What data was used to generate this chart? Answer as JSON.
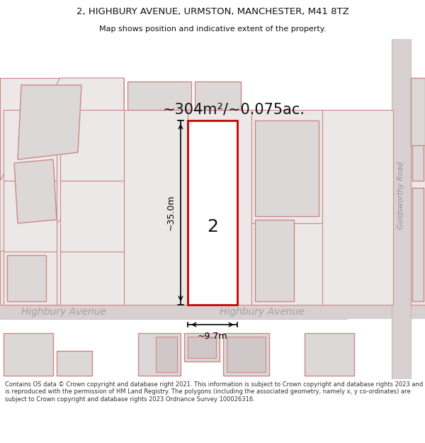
{
  "title_line1": "2, HIGHBURY AVENUE, URMSTON, MANCHESTER, M41 8TZ",
  "title_line2": "Map shows position and indicative extent of the property.",
  "area_text": "~304m²/~0.075ac.",
  "label_number": "2",
  "dim_height": "~35.0m",
  "dim_width": "~9.7m",
  "road_label_left": "Highbury Avenue",
  "road_label_right": "Highbury Avenue",
  "road_label_vert": "Goldsworthy Road",
  "footer": "Contains OS data © Crown copyright and database right 2021. This information is subject to Crown copyright and database rights 2023 and is reproduced with the permission of HM Land Registry. The polygons (including the associated geometry, namely x, y co-ordinates) are subject to Crown copyright and database rights 2023 Ordnance Survey 100026316.",
  "map_bg": "#f5f0f0",
  "plot_edge_color": "#cc0000",
  "building_fill": "#ddd8d8",
  "building_edge": "#cc8888",
  "parcel_fill": "#ece8e8",
  "parcel_edge": "#cc8888",
  "road_fill": "#d8d0d0",
  "road_edge": "#b8a8a8",
  "road_text_color": "#aaa0a0",
  "vert_road_text_color": "#999090",
  "dim_color": "#000000",
  "text_color": "#111111",
  "footer_color": "#333333"
}
